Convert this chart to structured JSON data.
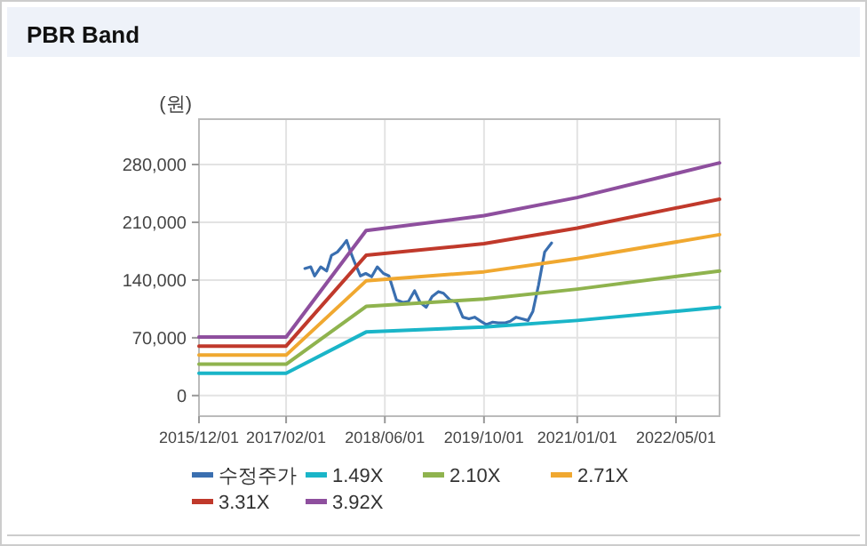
{
  "chart_data": {
    "type": "line",
    "title": "PBR Band",
    "ylabel": "(원)",
    "x": [
      "2015-12-01",
      "2017-02-01",
      "2018-03-01",
      "2019-10-01",
      "2021-01-01",
      "2022-12-01"
    ],
    "xlim": [
      "2015-12-01",
      "2022-12-01"
    ],
    "xticks": [
      {
        "value": "2015-12-01",
        "label": "2015/12/01"
      },
      {
        "value": "2017-02-01",
        "label": "2017/02/01"
      },
      {
        "value": "2018-06-01",
        "label": "2018/06/01"
      },
      {
        "value": "2019-10-01",
        "label": "2019/10/01"
      },
      {
        "value": "2021-01-01",
        "label": "2021/01/01"
      },
      {
        "value": "2022-05-01",
        "label": "2022/05/01"
      }
    ],
    "ylim": [
      -25000,
      335000
    ],
    "yticks": [
      {
        "value": 0,
        "label": "0"
      },
      {
        "value": 70000,
        "label": "70,000"
      },
      {
        "value": 140000,
        "label": "140,000"
      },
      {
        "value": 210000,
        "label": "210,000"
      },
      {
        "value": 280000,
        "label": "280,000"
      }
    ],
    "grid": true,
    "legend": "bottom",
    "marker": "none",
    "line_style": "solid",
    "series": [
      {
        "name": "수정주가",
        "color": "#3a6fb0",
        "x": [
          "2017-05-04",
          "2017-06-02",
          "2017-06-21",
          "2017-07-21",
          "2017-08-19",
          "2017-09-12",
          "2017-10-11",
          "2017-11-04",
          "2017-11-25",
          "2017-12-10",
          "2018-01-01",
          "2018-02-01",
          "2018-02-27",
          "2018-03-28",
          "2018-04-25",
          "2018-05-25",
          "2018-06-21",
          "2018-07-28",
          "2018-08-28",
          "2018-09-25",
          "2018-10-25",
          "2018-11-21",
          "2018-12-21",
          "2019-01-19",
          "2019-02-19",
          "2019-03-16",
          "2019-04-16",
          "2019-05-19",
          "2019-06-19",
          "2019-07-19",
          "2019-08-16",
          "2019-09-16",
          "2019-10-13",
          "2019-11-13",
          "2019-12-10",
          "2020-01-10",
          "2020-02-07",
          "2020-03-07",
          "2020-04-04",
          "2020-05-04",
          "2020-05-28",
          "2020-06-25",
          "2020-07-25",
          "2020-08-28"
        ],
        "values": [
          154000,
          156000,
          145000,
          156000,
          151000,
          170000,
          174000,
          181000,
          188000,
          177000,
          163000,
          145000,
          148000,
          144000,
          156000,
          148000,
          145000,
          116000,
          113000,
          114000,
          127000,
          113000,
          107000,
          120000,
          126000,
          124000,
          116000,
          113000,
          95000,
          93000,
          95000,
          90000,
          86000,
          89000,
          88000,
          88000,
          90000,
          95000,
          93000,
          91000,
          102000,
          134000,
          174000,
          185000
        ]
      },
      {
        "name": "1.49X",
        "color": "#1ab5c8",
        "values": [
          27000,
          27000,
          77000,
          83000,
          91000,
          107000
        ]
      },
      {
        "name": "2.10X",
        "color": "#8fb34e",
        "values": [
          38000,
          38000,
          108000,
          117000,
          129000,
          151000
        ]
      },
      {
        "name": "2.71X",
        "color": "#f0a830",
        "values": [
          49000,
          49000,
          139000,
          150000,
          166000,
          195000
        ]
      },
      {
        "name": "3.31X",
        "color": "#c0392b",
        "values": [
          60000,
          60000,
          170000,
          184000,
          203000,
          238000
        ]
      },
      {
        "name": "3.92X",
        "color": "#8e4f9e",
        "values": [
          71000,
          71000,
          200000,
          218000,
          240000,
          282000
        ]
      }
    ]
  }
}
